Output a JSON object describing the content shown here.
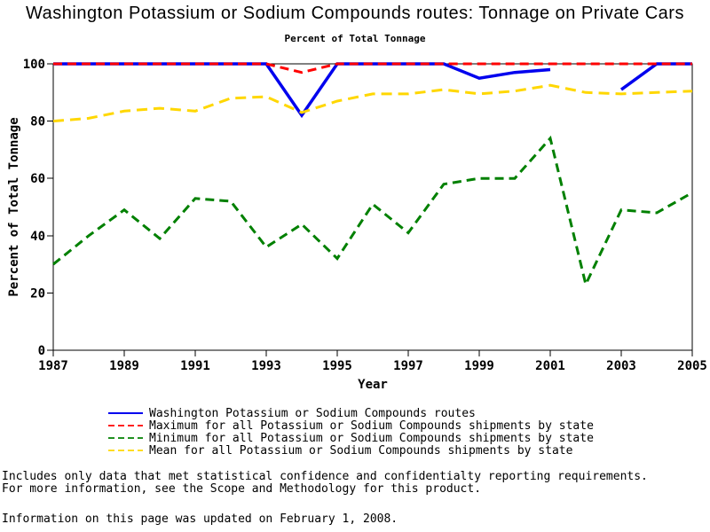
{
  "title": "Washington Potassium or Sodium Compounds routes: Tonnage on Private Cars",
  "subtitle": "Percent of Total Tonnage",
  "chart_data": {
    "type": "line",
    "title": "Washington Potassium or Sodium Compounds routes: Tonnage on Private Cars",
    "subtitle": "Percent of Total Tonnage",
    "xlabel": "Year",
    "ylabel": "Percent of Total Tonnage",
    "ylim": [
      0,
      100
    ],
    "yticks": [
      0,
      20,
      40,
      60,
      80,
      100
    ],
    "xticks": [
      1987,
      1989,
      1991,
      1993,
      1995,
      1997,
      1999,
      2001,
      2003,
      2005
    ],
    "grid": false,
    "legend_position": "bottom-left",
    "x": [
      1987,
      1988,
      1989,
      1990,
      1991,
      1992,
      1993,
      1994,
      1995,
      1996,
      1997,
      1998,
      1999,
      2000,
      2001,
      2002,
      2003,
      2004,
      2005
    ],
    "series": [
      {
        "name": "Washington Potassium or Sodium Compounds routes",
        "color": "#0000EE",
        "style": "solid",
        "values": [
          100,
          100,
          100,
          100,
          100,
          100,
          100,
          82,
          100,
          100,
          100,
          100,
          95,
          97,
          98,
          null,
          91,
          100,
          100
        ]
      },
      {
        "name": "Maximum for all Potassium or Sodium Compounds shipments by state",
        "color": "#FF0000",
        "style": "dashed",
        "values": [
          100,
          100,
          100,
          100,
          100,
          100,
          100,
          97,
          100,
          100,
          100,
          100,
          100,
          100,
          100,
          100,
          100,
          100,
          100
        ]
      },
      {
        "name": "Minimum for all Potassium or Sodium Compounds shipments by state",
        "color": "#008000",
        "style": "dashed",
        "values": [
          30,
          40,
          49,
          39,
          53,
          52,
          36,
          44,
          32,
          51,
          41,
          58,
          60,
          60,
          74,
          23,
          49,
          48,
          55
        ]
      },
      {
        "name": "Mean for all Potassium or Sodium Compounds shipments by state",
        "color": "#FFD700",
        "style": "dashed",
        "values": [
          80,
          81,
          83.5,
          84.5,
          83.5,
          88,
          88.5,
          83,
          87,
          89.5,
          89.5,
          91,
          89.5,
          90.5,
          92.5,
          90,
          89.5,
          90,
          90.5
        ]
      }
    ]
  },
  "footnotes": [
    "Includes only data that met statistical confidence and confidentialty reporting requirements.",
    "For more information, see the Scope and Methodology for this product."
  ],
  "updated_note": "Information on this page was updated on February 1, 2008."
}
